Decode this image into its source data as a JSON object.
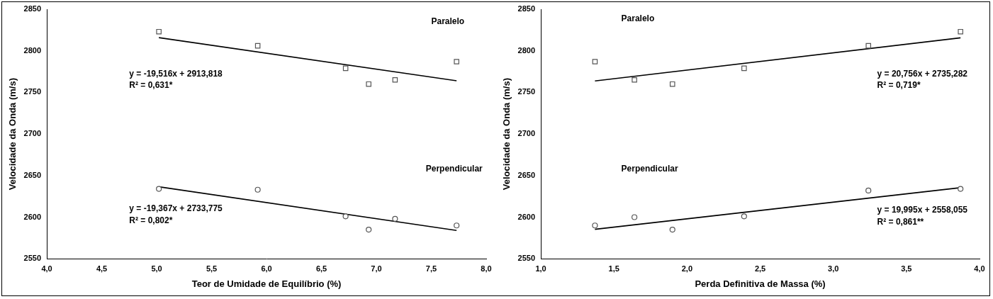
{
  "chart_data": [
    {
      "type": "scatter",
      "xlabel": "Teor de Umidade de Equilíbrio (%)",
      "ylabel": "Velocidade da Onda (m/s)",
      "xlim": [
        4,
        8
      ],
      "xticks": [
        {
          "value": 4,
          "label": "4,0"
        },
        {
          "value": 4.5,
          "label": "4,5"
        },
        {
          "value": 5,
          "label": "5,0"
        },
        {
          "value": 5.5,
          "label": "5,5"
        },
        {
          "value": 6,
          "label": "6,0"
        },
        {
          "value": 6.5,
          "label": "6,5"
        },
        {
          "value": 7,
          "label": "7,0"
        },
        {
          "value": 7.5,
          "label": "7,5"
        },
        {
          "value": 8,
          "label": "8,0"
        }
      ],
      "ylim": [
        2550,
        2850
      ],
      "yticks": [
        2550,
        2600,
        2650,
        2700,
        2750,
        2800,
        2850
      ],
      "grid": false,
      "series": [
        {
          "name": "Paralelo",
          "marker": "square",
          "color": "#555555",
          "x": [
            5.02,
            5.92,
            6.72,
            6.93,
            7.17,
            7.73
          ],
          "values": [
            2823,
            2806,
            2779,
            2760,
            2765,
            2787
          ]
        },
        {
          "name": "Perpendicular",
          "marker": "circle",
          "color": "#555555",
          "x": [
            5.02,
            5.92,
            6.72,
            6.93,
            7.17,
            7.73
          ],
          "values": [
            2634,
            2633,
            2601,
            2585,
            2598,
            2590
          ]
        },
        {
          "name": "y = -19,516x + 2913,818",
          "type": "line",
          "color": "#000000",
          "x": [
            5.02,
            7.73
          ],
          "values": [
            2815.85,
            2763.96
          ]
        },
        {
          "name": "y = -19,367x + 2733,775",
          "type": "line",
          "color": "#000000",
          "x": [
            5.02,
            7.73
          ],
          "values": [
            2636.55,
            2584.07
          ]
        }
      ],
      "annotations": [
        {
          "text": "Paralelo",
          "x": 7.5,
          "y": 2835
        },
        {
          "text": "y = -19,516x + 2913,818",
          "x": 4.75,
          "y": 2772
        },
        {
          "text": "R² = 0,631*",
          "x": 4.75,
          "y": 2758
        },
        {
          "text": "Perpendicular",
          "x": 7.45,
          "y": 2658
        },
        {
          "text": "y = -19,367x + 2733,775",
          "x": 4.75,
          "y": 2610
        },
        {
          "text": "R² = 0,802*",
          "x": 4.75,
          "y": 2596
        }
      ]
    },
    {
      "type": "scatter",
      "xlabel": "Perda Definitiva de Massa (%)",
      "ylabel": "Velocidade da Onda (m/s)",
      "xlim": [
        1,
        4
      ],
      "xticks": [
        {
          "value": 1,
          "label": "1,0"
        },
        {
          "value": 1.5,
          "label": "1,5"
        },
        {
          "value": 2,
          "label": "2,0"
        },
        {
          "value": 2.5,
          "label": "2,5"
        },
        {
          "value": 3,
          "label": "3,0"
        },
        {
          "value": 3.5,
          "label": "3,5"
        },
        {
          "value": 4,
          "label": "4,0"
        }
      ],
      "ylim": [
        2550,
        2850
      ],
      "yticks": [
        2550,
        2600,
        2650,
        2700,
        2750,
        2800,
        2850
      ],
      "grid": false,
      "series": [
        {
          "name": "Paralelo",
          "marker": "square",
          "color": "#555555",
          "x": [
            1.37,
            1.64,
            1.9,
            2.39,
            3.24,
            3.87
          ],
          "values": [
            2787,
            2765,
            2760,
            2779,
            2806,
            2823
          ]
        },
        {
          "name": "Perpendicular",
          "marker": "circle",
          "color": "#555555",
          "x": [
            1.37,
            1.64,
            1.9,
            2.39,
            3.24,
            3.87
          ],
          "values": [
            2590,
            2600,
            2585,
            2601,
            2632,
            2634
          ]
        },
        {
          "name": "y = 20,756x + 2735,282",
          "type": "line",
          "color": "#000000",
          "x": [
            1.37,
            3.87
          ],
          "values": [
            2763.72,
            2815.61
          ]
        },
        {
          "name": "y = 19,995x + 2558,055",
          "type": "line",
          "color": "#000000",
          "x": [
            1.37,
            3.87
          ],
          "values": [
            2585.45,
            2635.44
          ]
        }
      ],
      "annotations": [
        {
          "text": "Paralelo",
          "x": 1.55,
          "y": 2838
        },
        {
          "text": "y = 20,756x + 2735,282",
          "x": 3.3,
          "y": 2772
        },
        {
          "text": "R² = 0,719*",
          "x": 3.3,
          "y": 2758
        },
        {
          "text": "Perpendicular",
          "x": 1.55,
          "y": 2658
        },
        {
          "text": "y = 19,995x + 2558,055",
          "x": 3.3,
          "y": 2608
        },
        {
          "text": "R² = 0,861**",
          "x": 3.3,
          "y": 2594
        }
      ]
    }
  ]
}
